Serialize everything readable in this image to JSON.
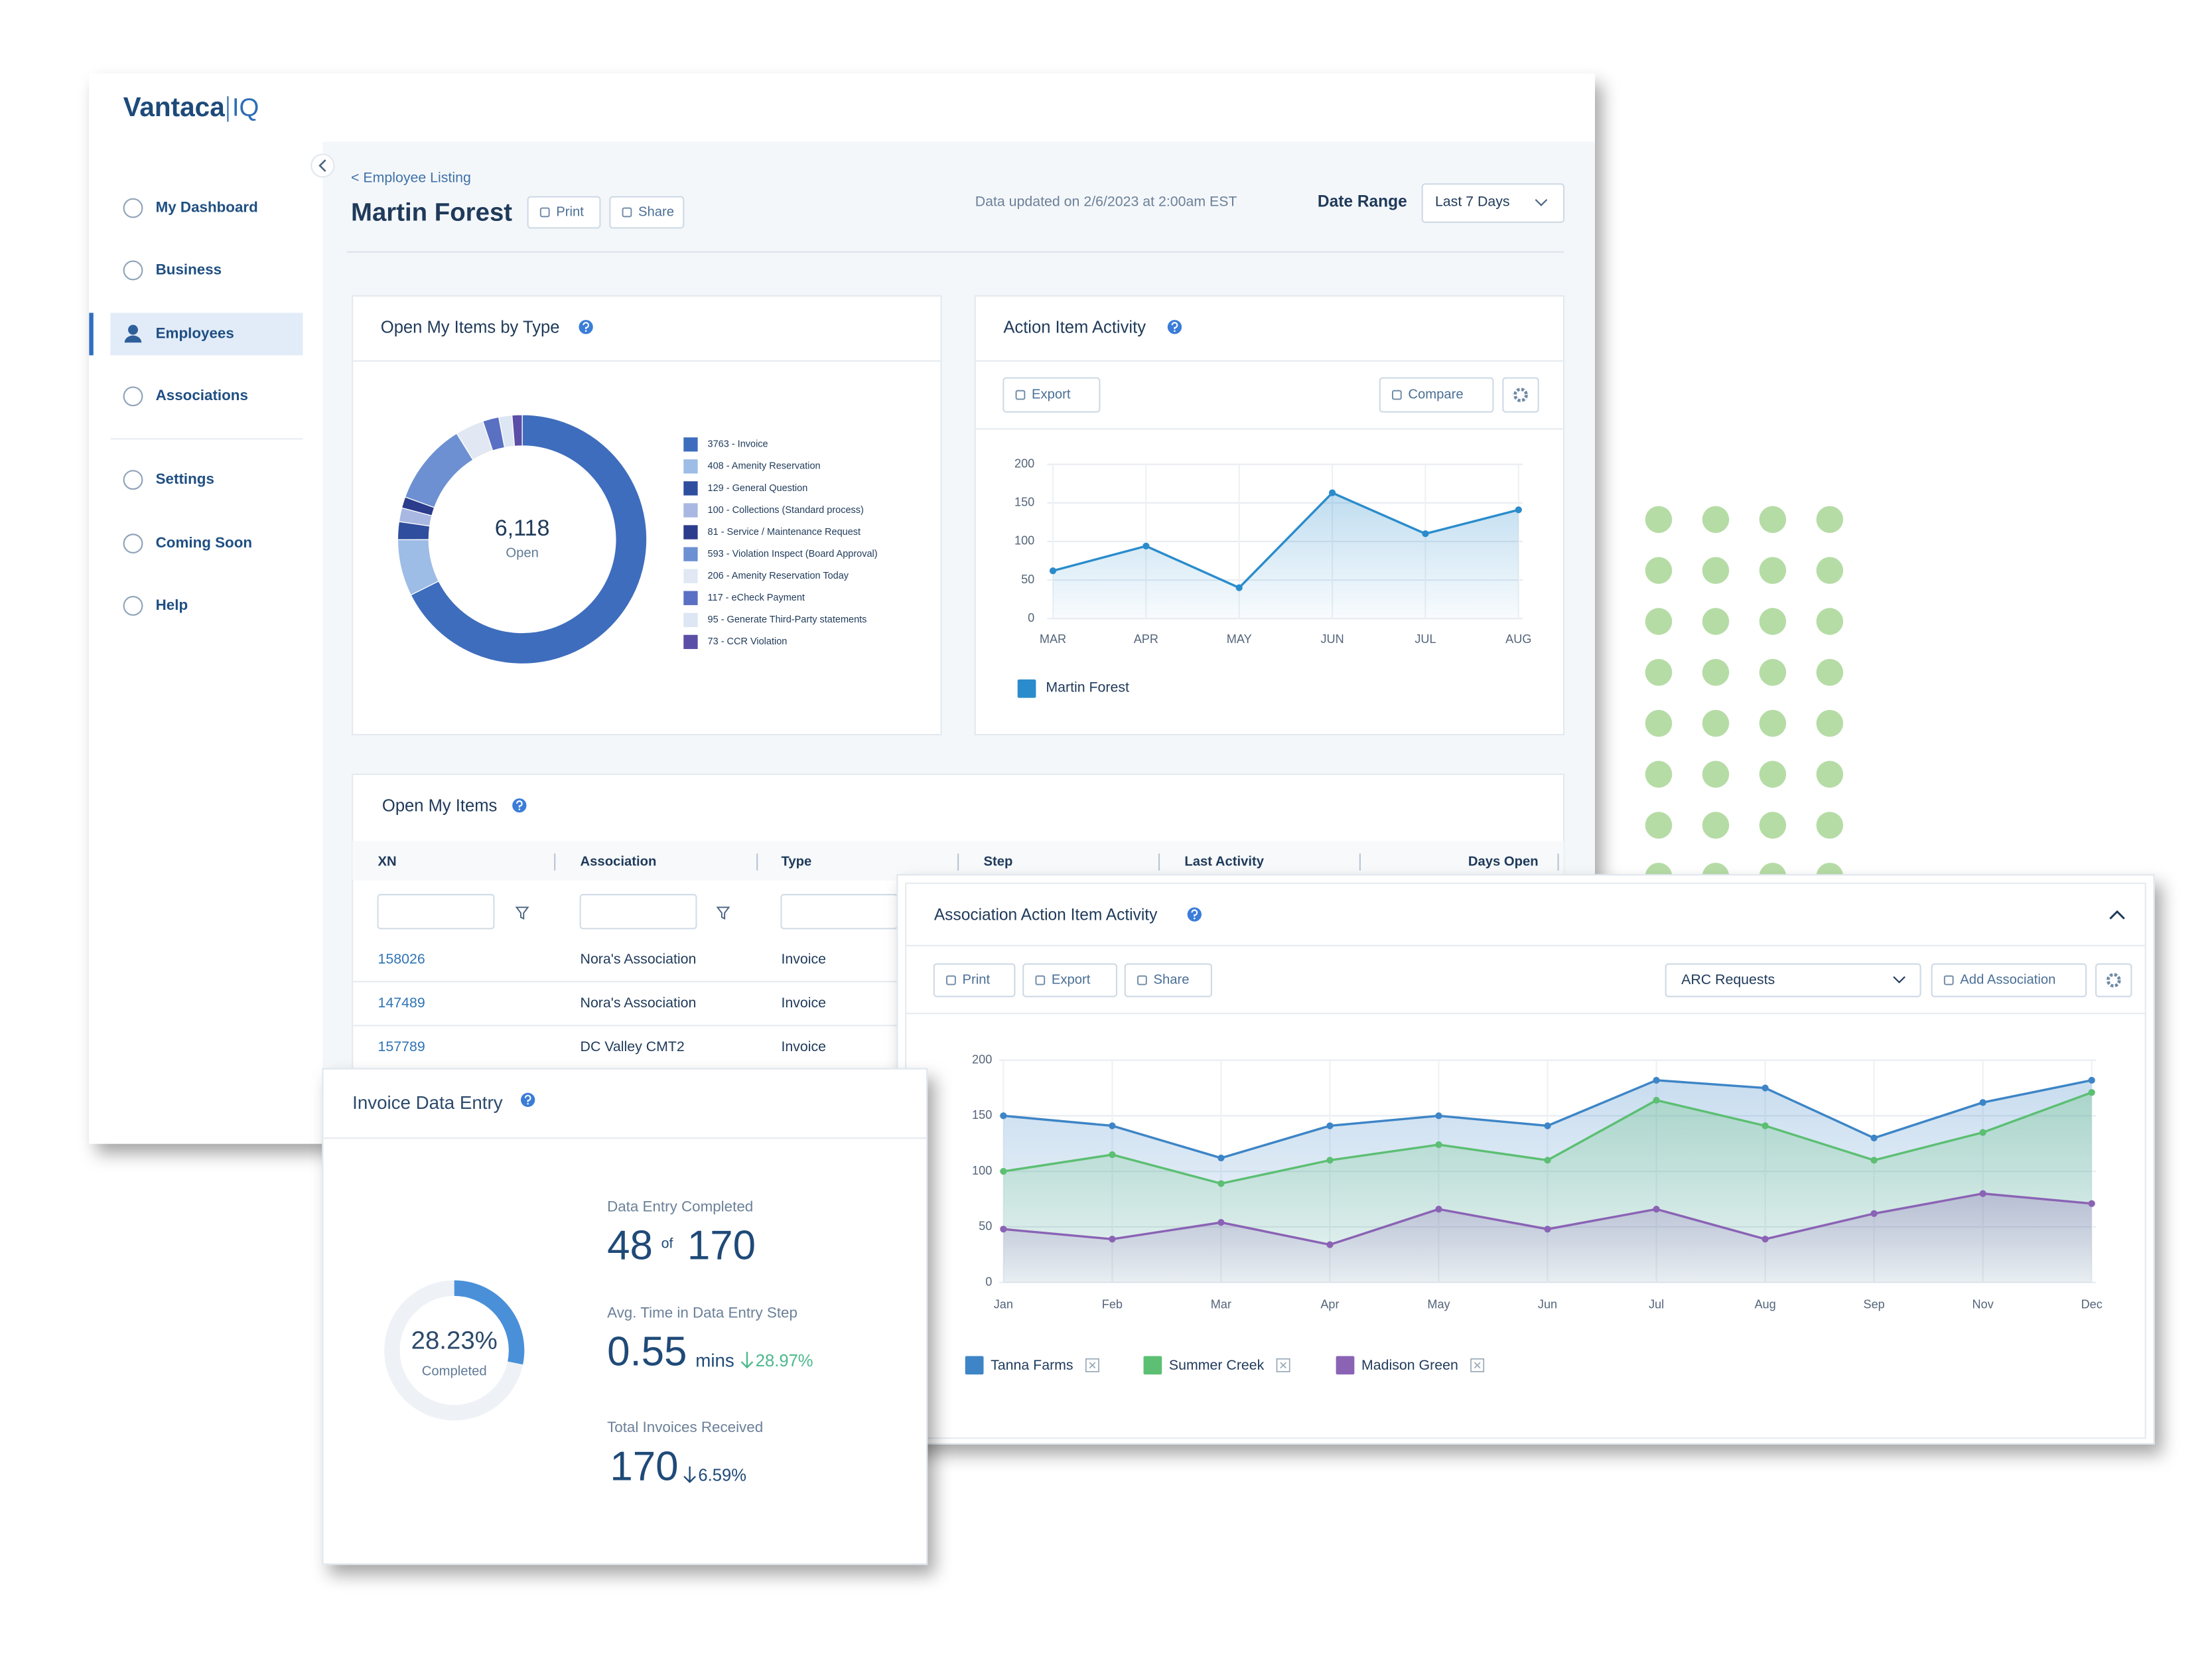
{
  "brand": {
    "name": "Vantaca",
    "suffix": "IQ"
  },
  "nav": [
    "My Dashboard",
    "Business",
    "Employees",
    "Associations",
    "Settings",
    "Coming Soon",
    "Help"
  ],
  "active_nav": 2,
  "header": {
    "breadcrumb": "< Employee Listing",
    "title": "Martin Forest",
    "buttons": [
      "Print",
      "Share"
    ],
    "updated": "Data updated on 2/6/2023 at 2:00am EST",
    "date_range_label": "Date Range",
    "date_range": "Last 7 Days"
  },
  "chart_data": [
    {
      "type": "donut",
      "title": "Open My Items by Type",
      "center_label": "6,118",
      "center_sublabel": "Open",
      "values": [
        3763,
        408,
        129,
        100,
        81,
        593,
        206,
        117,
        95,
        73
      ],
      "value_labels": [
        "3763 - Invoice",
        "408 - Amenity Reservation",
        "129 - General Question",
        "100 - Collections (Standard process)",
        "81 - Service / Maintenance Request",
        "593 - Violation Inspect (Board Approval)",
        "206 - Amenity Reservation Today",
        "117 - eCheck Payment",
        "95 - Generate Third-Party statements",
        "73 - CCR Violation"
      ],
      "colors": [
        "#3e6dbd",
        "#9dbce6",
        "#2f4e9e",
        "#a9b8e2",
        "#2c3c8c",
        "#6d90d2",
        "#e1e8f4",
        "#5a70c2",
        "#dde6f3",
        "#5a4ea6"
      ]
    },
    {
      "type": "line",
      "title": "Action Item Activity",
      "buttons": [
        "Export",
        "Compare"
      ],
      "categories": [
        "MAR",
        "APR",
        "MAY",
        "JUN",
        "JUL",
        "AUG"
      ],
      "series": [
        {
          "name": "Martin Forest",
          "color": "#2a8ccc",
          "values": [
            62,
            94,
            40,
            163,
            110,
            141
          ]
        }
      ],
      "ylim": [
        0,
        200
      ],
      "yticks": [
        0,
        50,
        100,
        150,
        200
      ],
      "grid": true
    },
    {
      "type": "area",
      "title": "Association Action Item Activity",
      "buttons": [
        "Print",
        "Export",
        "Share"
      ],
      "dropdown": "ARC Requests",
      "add_button": "Add Association",
      "categories": [
        "Jan",
        "Feb",
        "Mar",
        "Apr",
        "May",
        "Jun",
        "Jul",
        "Aug",
        "Sep",
        "Nov",
        "Dec"
      ],
      "series": [
        {
          "name": "Tanna Farms",
          "color": "#3d85c6",
          "values": [
            150,
            141,
            112,
            141,
            150,
            141,
            182,
            175,
            130,
            162,
            182
          ]
        },
        {
          "name": "Summer Creek",
          "color": "#5cbf73",
          "values": [
            100,
            115,
            89,
            110,
            124,
            110,
            164,
            141,
            110,
            135,
            171
          ]
        },
        {
          "name": "Madison Green",
          "color": "#8a63b5",
          "values": [
            48,
            39,
            54,
            34,
            66,
            48,
            66,
            39,
            62,
            80,
            71
          ]
        }
      ],
      "ylim": [
        0,
        200
      ],
      "yticks": [
        0,
        50,
        100,
        150,
        200
      ],
      "grid": true
    }
  ],
  "table": {
    "title": "Open My Items",
    "columns": [
      "XN",
      "Association",
      "Type",
      "Step",
      "Last Activity",
      "Days Open"
    ],
    "rows": [
      [
        "158026",
        "Nora's Association",
        "Invoice"
      ],
      [
        "147489",
        "Nora's Association",
        "Invoice"
      ],
      [
        "157789",
        "DC Valley CMT2",
        "Invoice"
      ]
    ]
  },
  "invoice": {
    "title": "Invoice Data Entry",
    "completed": {
      "value": 28.23,
      "label": "28.23%"
    },
    "completed_label": "Completed",
    "entry_label": "Data Entry Completed",
    "entry_done": "48",
    "entry_of": "of",
    "entry_total": "170",
    "time_label": "Avg. Time in Data Entry Step",
    "time_value": "0.55",
    "time_unit": "mins",
    "time_change": "28.97%",
    "total_label": "Total Invoices Received",
    "total_value": "170",
    "total_change": "6.59%"
  }
}
